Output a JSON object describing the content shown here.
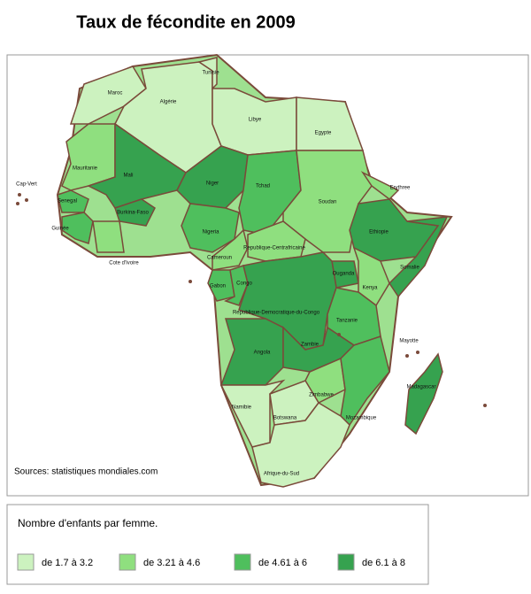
{
  "title": "Taux de fécondite en 2009",
  "source": "Sources:  statistiques mondiales.com",
  "legend": {
    "title": "Nombre d'enfants par femme.",
    "items": [
      {
        "label": "de 1.7 à 3.2",
        "color": "#ccf2bf"
      },
      {
        "label": "de 3.21 à 4.6",
        "color": "#8fdf7f"
      },
      {
        "label": "de 4.61 à 6",
        "color": "#4fbf5d"
      },
      {
        "label": "de 6.1 à 8",
        "color": "#36a24f"
      }
    ]
  },
  "regions": [
    {
      "name": "Maroc",
      "class": 0
    },
    {
      "name": "Algérie",
      "class": 0
    },
    {
      "name": "Tunisie",
      "class": 0
    },
    {
      "name": "Libye",
      "class": 0
    },
    {
      "name": "Egypte",
      "class": 0
    },
    {
      "name": "Mauritanie",
      "class": 1
    },
    {
      "name": "Mali",
      "class": 3
    },
    {
      "name": "Niger",
      "class": 3
    },
    {
      "name": "Tchad",
      "class": 2
    },
    {
      "name": "Soudan",
      "class": 1
    },
    {
      "name": "Erythree",
      "class": 1
    },
    {
      "name": "Senegal",
      "class": 2
    },
    {
      "name": "Guinée",
      "class": 2
    },
    {
      "name": "Burkina-Faso",
      "class": 3
    },
    {
      "name": "Cote d'Ivoire",
      "class": 1
    },
    {
      "name": "Nigeria",
      "class": 2
    },
    {
      "name": "Cameroun",
      "class": 1
    },
    {
      "name": "Republique-Centrafricaine",
      "class": 1
    },
    {
      "name": "Ethiopie",
      "class": 3
    },
    {
      "name": "Somalie",
      "class": 3
    },
    {
      "name": "Ouganda",
      "class": 3
    },
    {
      "name": "Kenya",
      "class": 1
    },
    {
      "name": "Gabon",
      "class": 2
    },
    {
      "name": "Congo",
      "class": 2
    },
    {
      "name": "Republique-Democratique-du-Congo",
      "class": 3
    },
    {
      "name": "Tanzanie",
      "class": 2
    },
    {
      "name": "Angola",
      "class": 3
    },
    {
      "name": "Zambie",
      "class": 3
    },
    {
      "name": "Zimbabwe",
      "class": 1
    },
    {
      "name": "Mozambique",
      "class": 2
    },
    {
      "name": "Namibie",
      "class": 0
    },
    {
      "name": "Botswana",
      "class": 0
    },
    {
      "name": "Afrique-du-Sud",
      "class": 0
    },
    {
      "name": "Madagascar",
      "class": 3
    }
  ],
  "labels": [
    "Cap-Vert",
    "Mayotte"
  ]
}
